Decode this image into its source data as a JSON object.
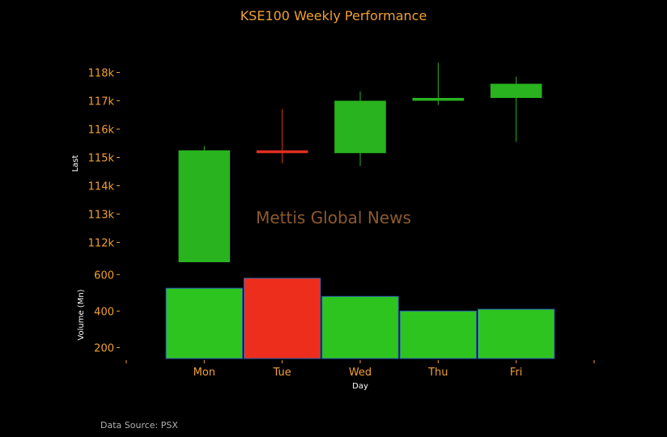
{
  "chart_data": {
    "type": "candlestick",
    "title": "KSE100 Weekly Performance",
    "watermark": "Mettis Global News",
    "source": "Data Source: PSX",
    "xlabel": "Day",
    "categories": [
      "Mon",
      "Tue",
      "Wed",
      "Thu",
      "Fri"
    ],
    "price_panel": {
      "ylabel": "Last",
      "ylim": [
        111500,
        118500
      ],
      "yticks": [
        112000,
        113000,
        114000,
        115000,
        116000,
        117000,
        118000
      ],
      "ytick_labels": [
        "112k",
        "113k",
        "114k",
        "115k",
        "116k",
        "117k",
        "118k"
      ],
      "candles": [
        {
          "open": 111300,
          "close": 115250,
          "high": 115400,
          "low": 111300,
          "direction": "up"
        },
        {
          "open": 115250,
          "close": 115150,
          "high": 116700,
          "low": 114800,
          "direction": "down"
        },
        {
          "open": 115150,
          "close": 117000,
          "high": 117330,
          "low": 114700,
          "direction": "up"
        },
        {
          "open": 117000,
          "close": 117100,
          "high": 118350,
          "low": 116850,
          "direction": "up"
        },
        {
          "open": 117100,
          "close": 117600,
          "high": 117850,
          "low": 115550,
          "direction": "up"
        }
      ]
    },
    "volume_panel": {
      "ylabel": "Volume (Mn)",
      "ylim": [
        140,
        650
      ],
      "yticks": [
        200,
        400,
        600
      ],
      "ytick_labels": [
        "200",
        "400",
        "600"
      ],
      "values": [
        525,
        580,
        480,
        400,
        410
      ],
      "direction": [
        "up",
        "down",
        "up",
        "up",
        "up"
      ]
    },
    "colors": {
      "up": "#28b31f",
      "down": "#e03020",
      "volume_up": "#2ec420",
      "volume_down": "#ee2e1c",
      "volume_edge": "#2a5fb0",
      "accent": "#f0a030"
    }
  }
}
